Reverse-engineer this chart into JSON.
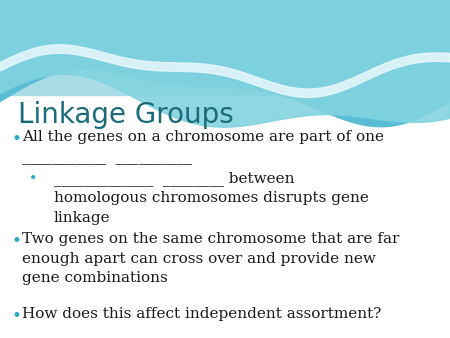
{
  "title": "Linkage Groups",
  "title_color": "#1c6b7a",
  "title_fontsize": 20,
  "background_color": "#ffffff",
  "bullet_color": "#29a8c8",
  "text_color": "#1a1a1a",
  "text_fontsize": 11,
  "figsize": [
    4.5,
    3.38
  ],
  "dpi": 100,
  "wave_top_color": "#5abdd4",
  "wave_mid_color": "#7fd4e4",
  "wave_light_color": "#b8eaf4",
  "bullet1_line1": "All the genes on a chromosome are part of one",
  "bullet1_line2": "___________  __________",
  "sub_bullet_line1": "_____________  ________ between",
  "sub_bullet_line2": "homologous chromosomes disrupts gene",
  "sub_bullet_line3": "linkage",
  "bullet2_line1": "Two genes on the same chromosome that are far",
  "bullet2_line2": "enough apart can cross over and provide new",
  "bullet2_line3": "gene combinations",
  "bullet3_line1": "How does this affect independent assortment?"
}
